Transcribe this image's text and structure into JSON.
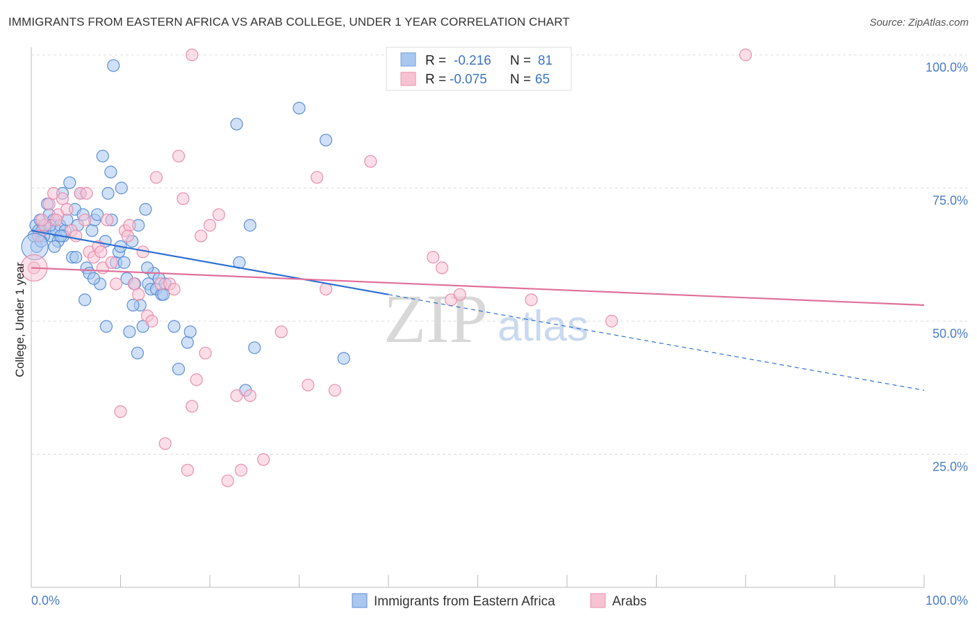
{
  "title": "IMMIGRANTS FROM EASTERN AFRICA VS ARAB COLLEGE, UNDER 1 YEAR CORRELATION CHART",
  "source": "Source: ZipAtlas.com",
  "watermark": {
    "zip": "ZIP",
    "atlas": "atlas"
  },
  "legend": {
    "rows": [
      {
        "r_label": "R =",
        "r_value": "-0.216",
        "n_label": "N =",
        "n_value": "81",
        "color": "#a9c7ef",
        "stroke": "#6f9fdc"
      },
      {
        "r_label": "R =",
        "r_value": "-0.075",
        "n_label": "N =",
        "n_value": "65",
        "color": "#f7c3d3",
        "stroke": "#e890ad"
      }
    ]
  },
  "chart_data": {
    "type": "scatter",
    "xlabel": "",
    "ylabel": "College, Under 1 year",
    "xlim": [
      0,
      100
    ],
    "ylim": [
      0,
      100
    ],
    "x_tick_labels": [
      "0.0%",
      "100.0%"
    ],
    "y_ticks": [
      25,
      50,
      75,
      100
    ],
    "y_tick_labels": [
      "25.0%",
      "50.0%",
      "75.0%",
      "100.0%"
    ],
    "grid": true,
    "legend_position": "bottom-center",
    "series": [
      {
        "name": "Immigrants from Eastern Africa",
        "color": "#a9c7ef",
        "stroke": "#5e8fd6",
        "trend": {
          "x0": 0,
          "y0": 67.0,
          "x1": 40,
          "y1": 55.0,
          "dash_to_x": 100,
          "dash_to_y": 37.0,
          "color": "#2e6fd0"
        },
        "points": [
          [
            0.5,
            68
          ],
          [
            0.8,
            67
          ],
          [
            1.0,
            69
          ],
          [
            1.2,
            67
          ],
          [
            1.5,
            68
          ],
          [
            1.8,
            72
          ],
          [
            2.0,
            70
          ],
          [
            2.2,
            66
          ],
          [
            2.5,
            69
          ],
          [
            2.8,
            67
          ],
          [
            3.0,
            65
          ],
          [
            3.2,
            68
          ],
          [
            3.5,
            74
          ],
          [
            3.8,
            67
          ],
          [
            4.0,
            69
          ],
          [
            4.3,
            76
          ],
          [
            4.6,
            62
          ],
          [
            4.9,
            71
          ],
          [
            5.2,
            68
          ],
          [
            5.5,
            74
          ],
          [
            5.8,
            70
          ],
          [
            6.2,
            60
          ],
          [
            6.5,
            59
          ],
          [
            6.8,
            67
          ],
          [
            7.1,
            69
          ],
          [
            7.4,
            70
          ],
          [
            7.7,
            57
          ],
          [
            8.0,
            81
          ],
          [
            8.3,
            65
          ],
          [
            8.6,
            74
          ],
          [
            8.9,
            78
          ],
          [
            9.2,
            98
          ],
          [
            9.5,
            61
          ],
          [
            9.8,
            63
          ],
          [
            10.1,
            75
          ],
          [
            10.4,
            61
          ],
          [
            10.7,
            58
          ],
          [
            11.0,
            48
          ],
          [
            11.3,
            65
          ],
          [
            11.6,
            57
          ],
          [
            11.9,
            44
          ],
          [
            12.2,
            53
          ],
          [
            12.5,
            49
          ],
          [
            12.8,
            71
          ],
          [
            13.1,
            57
          ],
          [
            13.4,
            56
          ],
          [
            13.7,
            59
          ],
          [
            14.0,
            56
          ],
          [
            14.3,
            58
          ],
          [
            14.6,
            55
          ],
          [
            15.0,
            57
          ],
          [
            16.5,
            41
          ],
          [
            17.5,
            46
          ],
          [
            17.8,
            48
          ],
          [
            23.0,
            87
          ],
          [
            23.3,
            61
          ],
          [
            24.0,
            37
          ],
          [
            24.5,
            68
          ],
          [
            25.0,
            45
          ],
          [
            30.0,
            90
          ],
          [
            33.0,
            84
          ],
          [
            35.0,
            43
          ],
          [
            1.4,
            66
          ],
          [
            2.6,
            64
          ],
          [
            3.6,
            66
          ],
          [
            5.0,
            62
          ],
          [
            6.0,
            54
          ],
          [
            7.0,
            58
          ],
          [
            8.4,
            49
          ],
          [
            9.0,
            69
          ],
          [
            10.0,
            64
          ],
          [
            11.4,
            53
          ],
          [
            12.0,
            68
          ],
          [
            13.0,
            60
          ],
          [
            14.8,
            55
          ],
          [
            16.0,
            49
          ],
          [
            0.3,
            66
          ],
          [
            0.6,
            64
          ],
          [
            1.1,
            65
          ],
          [
            2.1,
            68
          ],
          [
            3.3,
            66
          ]
        ]
      },
      {
        "name": "Arabs",
        "color": "#f7c3d3",
        "stroke": "#e88fae",
        "trend": {
          "x0": 0,
          "y0": 60.0,
          "x1": 100,
          "y1": 53.0,
          "color": "#e0709a"
        },
        "points": [
          [
            0.3,
            60
          ],
          [
            0.8,
            66
          ],
          [
            1.5,
            68
          ],
          [
            2.0,
            72
          ],
          [
            2.5,
            74
          ],
          [
            3.0,
            70
          ],
          [
            3.5,
            73
          ],
          [
            4.0,
            71
          ],
          [
            4.5,
            67
          ],
          [
            5.0,
            66
          ],
          [
            5.5,
            74
          ],
          [
            6.0,
            69
          ],
          [
            6.5,
            63
          ],
          [
            7.0,
            62
          ],
          [
            7.5,
            64
          ],
          [
            8.0,
            60
          ],
          [
            8.5,
            69
          ],
          [
            9.0,
            61
          ],
          [
            9.5,
            57
          ],
          [
            10.0,
            33
          ],
          [
            10.5,
            67
          ],
          [
            11.0,
            68
          ],
          [
            11.5,
            57
          ],
          [
            12.0,
            55
          ],
          [
            12.5,
            63
          ],
          [
            13.0,
            51
          ],
          [
            13.5,
            50
          ],
          [
            14.0,
            77
          ],
          [
            14.5,
            57
          ],
          [
            15.0,
            27
          ],
          [
            15.5,
            57
          ],
          [
            16.0,
            56
          ],
          [
            16.5,
            81
          ],
          [
            17.0,
            73
          ],
          [
            17.5,
            22
          ],
          [
            18.0,
            34
          ],
          [
            18.5,
            39
          ],
          [
            19.0,
            66
          ],
          [
            19.5,
            44
          ],
          [
            20.0,
            68
          ],
          [
            21.0,
            70
          ],
          [
            22.0,
            20
          ],
          [
            23.0,
            36
          ],
          [
            23.5,
            22
          ],
          [
            24.5,
            36
          ],
          [
            26.0,
            24
          ],
          [
            28.0,
            48
          ],
          [
            31.0,
            38
          ],
          [
            32.0,
            77
          ],
          [
            33.0,
            56
          ],
          [
            34.0,
            37
          ],
          [
            38.0,
            80
          ],
          [
            45.0,
            62
          ],
          [
            46.0,
            60
          ],
          [
            47.0,
            54
          ],
          [
            48.0,
            55
          ],
          [
            56.0,
            54
          ],
          [
            65.0,
            50
          ],
          [
            80.0,
            100
          ],
          [
            18.0,
            100
          ],
          [
            6.2,
            74
          ],
          [
            7.8,
            63
          ],
          [
            10.8,
            66
          ],
          [
            2.8,
            69
          ],
          [
            1.2,
            69
          ]
        ]
      }
    ]
  }
}
